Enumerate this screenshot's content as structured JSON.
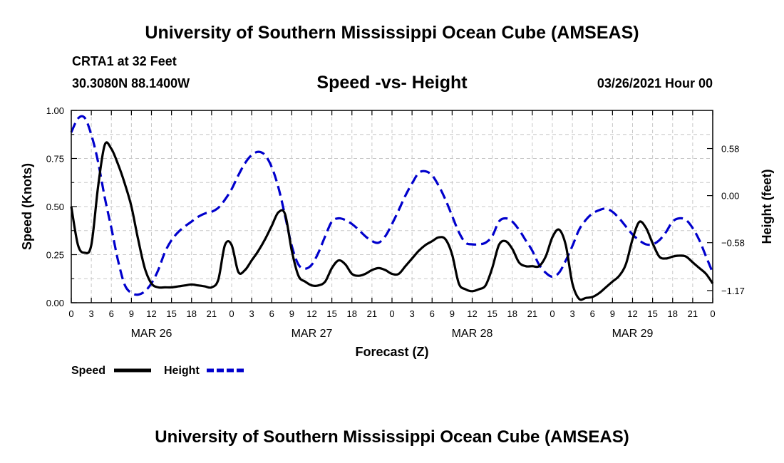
{
  "page": {
    "top_title": "University of Southern Mississippi Ocean Cube (AMSEAS)",
    "bottom_title": "University of Southern Mississippi Ocean Cube (AMSEAS)",
    "station": "CRTA1 at 32 Feet",
    "location": "30.3080N  88.1400W",
    "datetime": "03/26/2021 Hour 00"
  },
  "chart_data": {
    "type": "line",
    "title": "Speed -vs- Height",
    "xlabel": "Forecast (Z)",
    "ylabel_left": "Speed (Knots)",
    "ylabel_right": "Height (feet)",
    "x_unit": "forecast hours from 03/26/2021 00Z",
    "x_range": [
      0,
      96
    ],
    "x_tick_labels": [
      "0",
      "3",
      "6",
      "9",
      "12",
      "15",
      "18",
      "21",
      "0",
      "3",
      "6",
      "9",
      "12",
      "15",
      "18",
      "21",
      "0",
      "3",
      "6",
      "9",
      "12",
      "15",
      "18",
      "21",
      "0",
      "3",
      "6",
      "9",
      "12",
      "15",
      "18",
      "21",
      "0"
    ],
    "date_labels": [
      {
        "hour": 12,
        "text": "MAR 26"
      },
      {
        "hour": 36,
        "text": "MAR 27"
      },
      {
        "hour": 60,
        "text": "MAR 28"
      },
      {
        "hour": 84,
        "text": "MAR 29"
      }
    ],
    "y_left": {
      "range": [
        0,
        1.0
      ],
      "ticks": [
        0.0,
        0.25,
        0.5,
        0.75,
        1.0
      ],
      "tick_labels": [
        "0.00",
        "0.25",
        "0.50",
        "0.75",
        "1.00"
      ]
    },
    "y_right": {
      "range": [
        -1.32,
        1.05
      ],
      "ticks": [
        -1.17,
        -0.58,
        0.0,
        0.58
      ],
      "tick_labels": [
        "−1.17",
        "−0.58",
        "0.00",
        "0.58"
      ]
    },
    "grid": true,
    "legend": [
      {
        "name": "Speed",
        "color": "#000000",
        "style": "solid"
      },
      {
        "name": "Height",
        "color": "#0000cc",
        "style": "dashed"
      }
    ],
    "series": [
      {
        "name": "Speed",
        "axis": "left",
        "color": "#000000",
        "x": [
          0,
          1,
          2,
          3,
          4,
          5,
          6,
          7,
          8,
          9,
          10,
          11,
          12,
          13,
          14,
          15,
          16,
          17,
          18,
          19,
          20,
          21,
          22,
          23,
          24,
          25,
          26,
          27,
          28,
          29,
          30,
          31,
          32,
          33,
          34,
          35,
          36,
          37,
          38,
          39,
          40,
          41,
          42,
          43,
          44,
          45,
          46,
          47,
          48,
          49,
          50,
          51,
          52,
          53,
          54,
          55,
          56,
          57,
          58,
          59,
          60,
          61,
          62,
          63,
          64,
          65,
          66,
          67,
          68,
          69,
          70,
          71,
          72,
          73,
          74,
          75,
          76,
          77,
          78,
          79,
          80,
          81,
          82,
          83,
          84,
          85,
          86,
          87,
          88,
          89,
          90,
          91,
          92,
          93,
          94,
          95,
          96
        ],
        "values": [
          0.5,
          0.3,
          0.26,
          0.3,
          0.6,
          0.82,
          0.8,
          0.72,
          0.62,
          0.5,
          0.33,
          0.18,
          0.1,
          0.08,
          0.08,
          0.08,
          0.085,
          0.09,
          0.095,
          0.09,
          0.085,
          0.08,
          0.12,
          0.3,
          0.3,
          0.16,
          0.17,
          0.22,
          0.27,
          0.33,
          0.4,
          0.47,
          0.46,
          0.27,
          0.14,
          0.11,
          0.09,
          0.09,
          0.11,
          0.18,
          0.22,
          0.2,
          0.15,
          0.14,
          0.15,
          0.17,
          0.18,
          0.17,
          0.15,
          0.15,
          0.19,
          0.23,
          0.27,
          0.3,
          0.32,
          0.34,
          0.33,
          0.25,
          0.1,
          0.07,
          0.06,
          0.07,
          0.09,
          0.18,
          0.3,
          0.32,
          0.28,
          0.21,
          0.19,
          0.19,
          0.19,
          0.24,
          0.34,
          0.38,
          0.3,
          0.1,
          0.02,
          0.025,
          0.03,
          0.05,
          0.08,
          0.11,
          0.14,
          0.2,
          0.33,
          0.42,
          0.39,
          0.31,
          0.24,
          0.23,
          0.24,
          0.245,
          0.24,
          0.21,
          0.18,
          0.15,
          0.1
        ]
      },
      {
        "name": "Height",
        "axis": "right",
        "color": "#0000cc",
        "x": [
          0,
          1,
          2,
          3,
          4,
          5,
          6,
          7,
          8,
          9,
          10,
          11,
          12,
          13,
          14,
          15,
          16,
          17,
          18,
          19,
          20,
          21,
          22,
          23,
          24,
          25,
          26,
          27,
          28,
          29,
          30,
          31,
          32,
          33,
          34,
          35,
          36,
          37,
          38,
          39,
          40,
          41,
          42,
          43,
          44,
          45,
          46,
          47,
          48,
          49,
          50,
          51,
          52,
          53,
          54,
          55,
          56,
          57,
          58,
          59,
          60,
          61,
          62,
          63,
          64,
          65,
          66,
          67,
          68,
          69,
          70,
          71,
          72,
          73,
          74,
          75,
          76,
          77,
          78,
          79,
          80,
          81,
          82,
          83,
          84,
          85,
          86,
          87,
          88,
          89,
          90,
          91,
          92,
          93,
          94,
          95,
          96
        ],
        "values": [
          0.78,
          0.95,
          0.96,
          0.75,
          0.42,
          -0.02,
          -0.4,
          -0.8,
          -1.1,
          -1.2,
          -1.22,
          -1.18,
          -1.08,
          -0.92,
          -0.7,
          -0.55,
          -0.45,
          -0.38,
          -0.32,
          -0.26,
          -0.22,
          -0.2,
          -0.15,
          -0.05,
          0.08,
          0.25,
          0.4,
          0.5,
          0.54,
          0.5,
          0.35,
          0.1,
          -0.25,
          -0.62,
          -0.85,
          -0.9,
          -0.85,
          -0.7,
          -0.5,
          -0.32,
          -0.28,
          -0.3,
          -0.35,
          -0.42,
          -0.5,
          -0.56,
          -0.58,
          -0.5,
          -0.35,
          -0.18,
          0.0,
          0.15,
          0.28,
          0.3,
          0.25,
          0.12,
          -0.05,
          -0.25,
          -0.45,
          -0.58,
          -0.6,
          -0.6,
          -0.58,
          -0.5,
          -0.32,
          -0.28,
          -0.32,
          -0.42,
          -0.55,
          -0.68,
          -0.85,
          -0.95,
          -1.0,
          -0.95,
          -0.8,
          -0.62,
          -0.42,
          -0.3,
          -0.22,
          -0.18,
          -0.16,
          -0.2,
          -0.28,
          -0.38,
          -0.48,
          -0.55,
          -0.6,
          -0.6,
          -0.55,
          -0.45,
          -0.32,
          -0.28,
          -0.3,
          -0.4,
          -0.55,
          -0.75,
          -0.95
        ]
      }
    ]
  }
}
